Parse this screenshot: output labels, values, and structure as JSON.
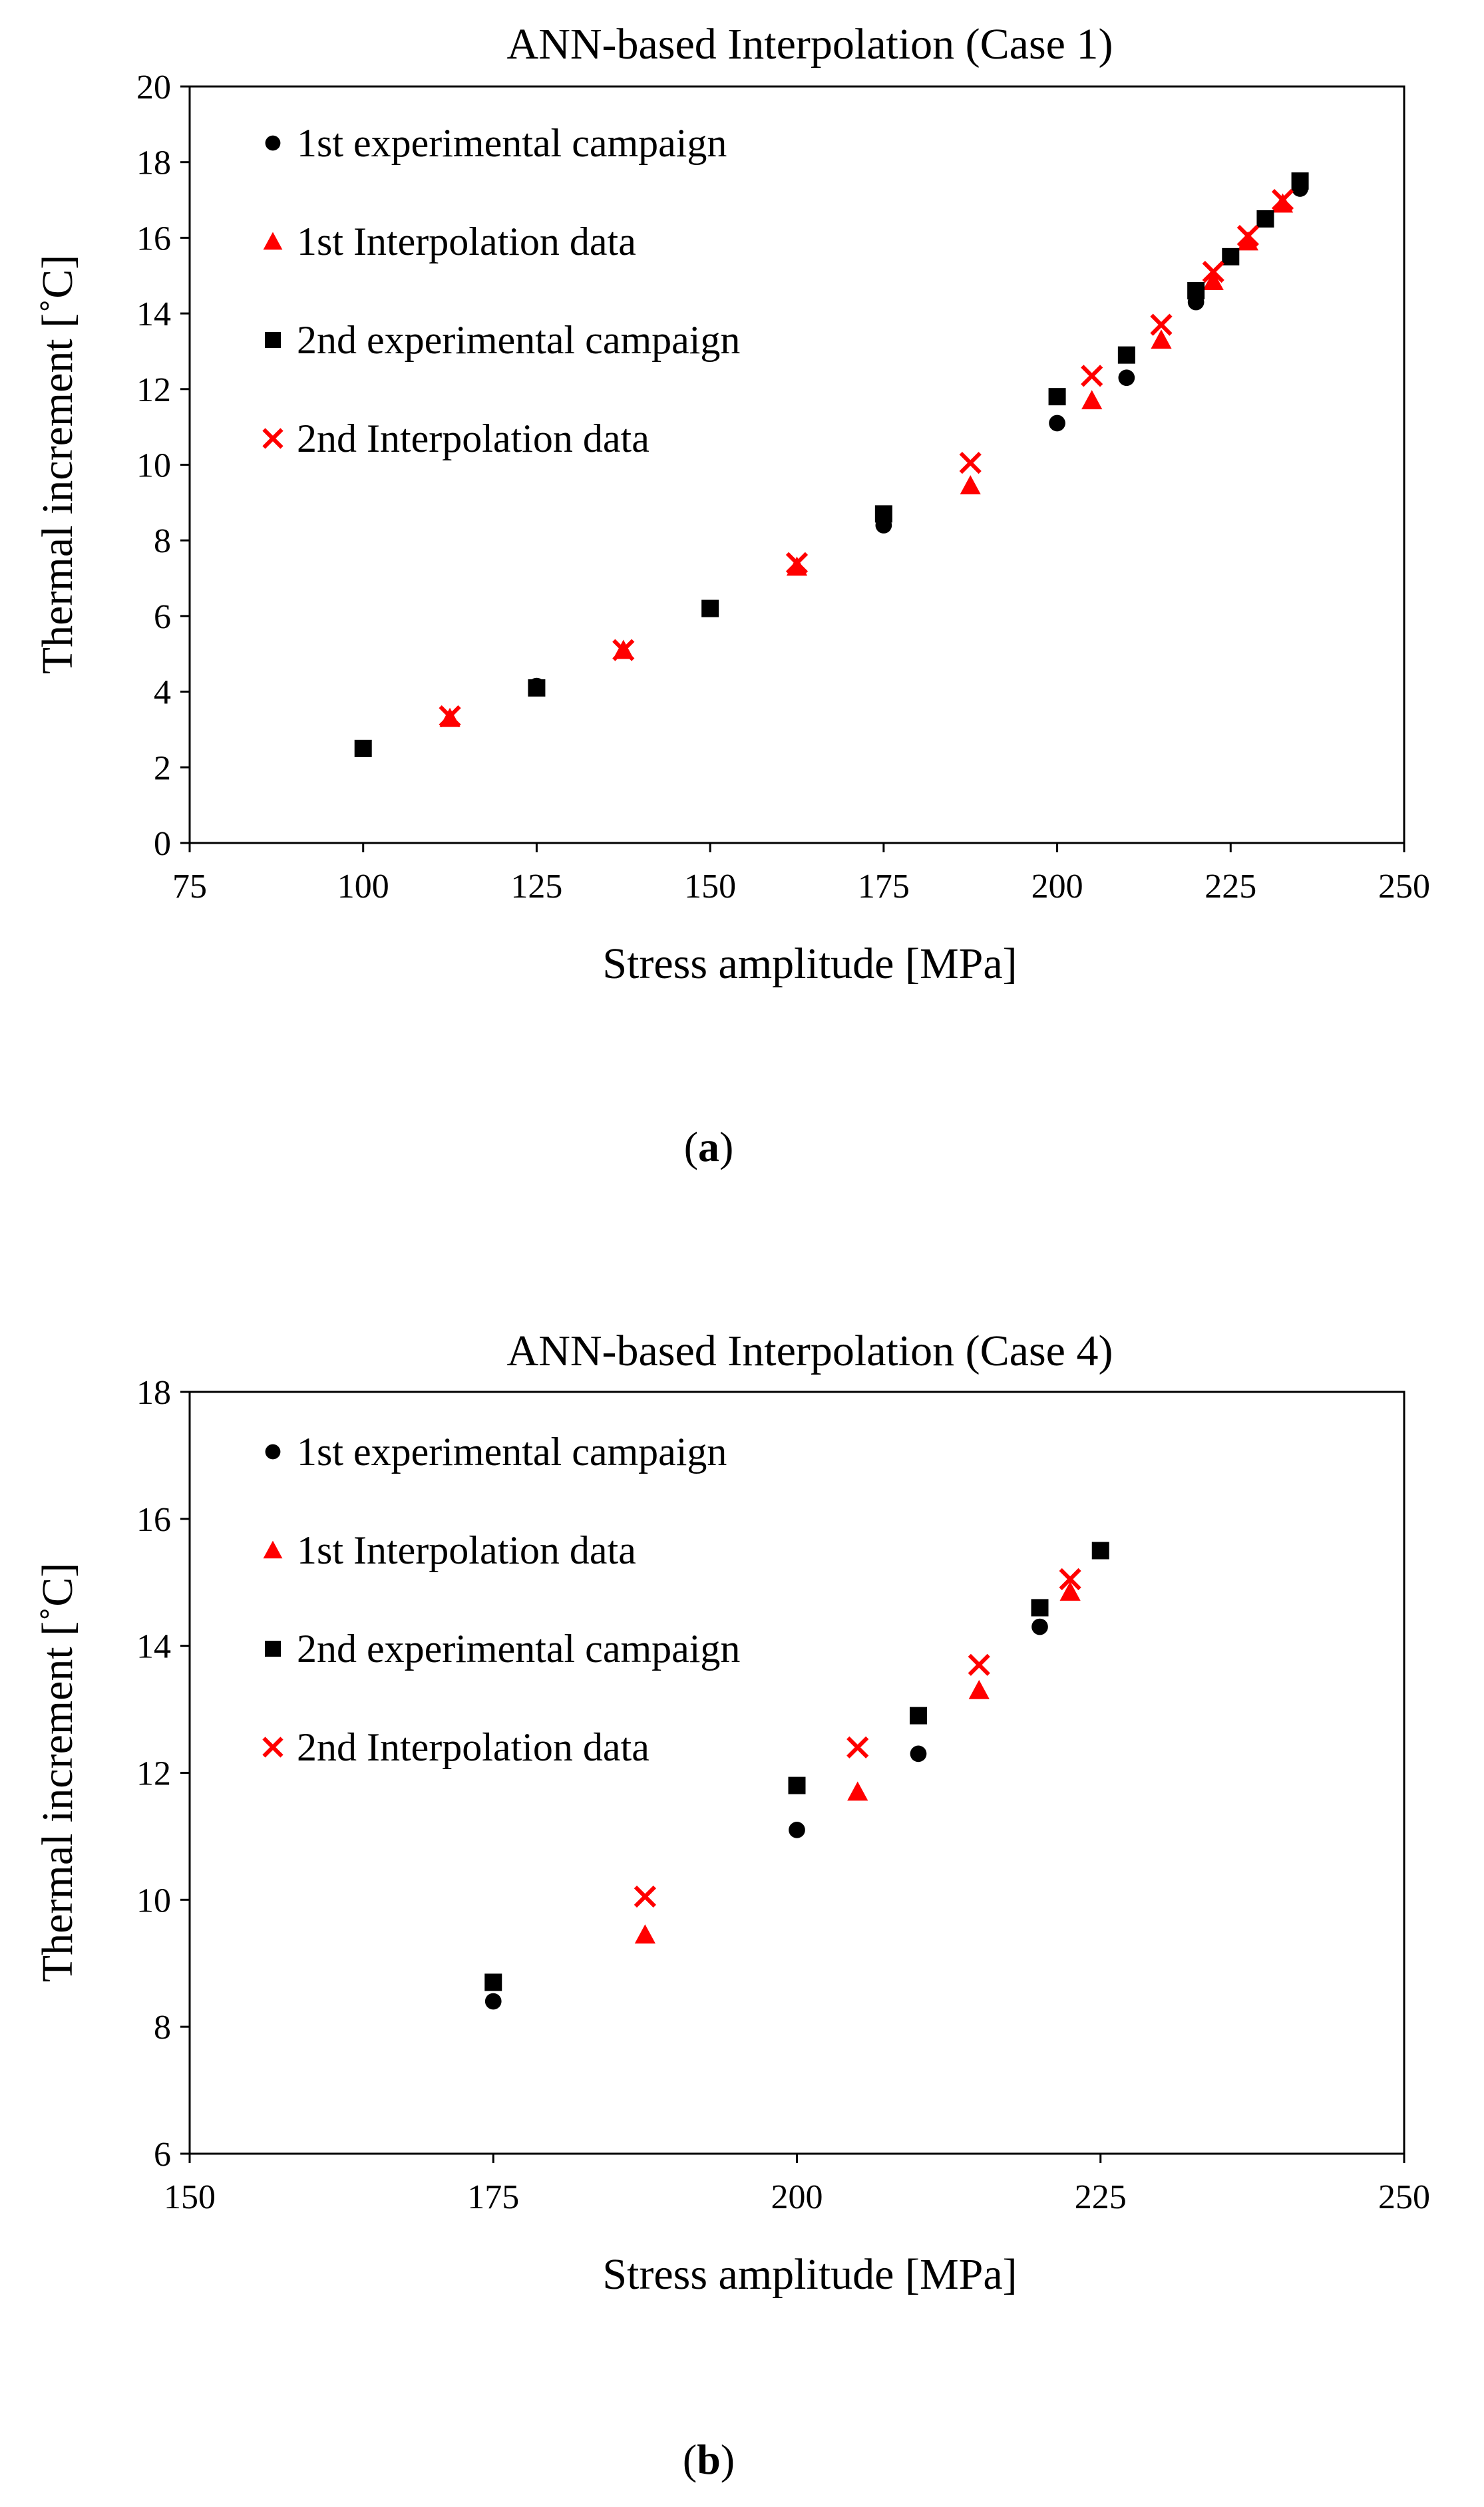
{
  "figure": {
    "captions": [
      "(a)",
      "(b)"
    ],
    "caption_letters": [
      "a",
      "b"
    ]
  },
  "chart_data": [
    {
      "type": "scatter",
      "title": "ANN-based Interpolation (Case 1)",
      "xlabel": "Stress amplitude [MPa]",
      "ylabel": "Thermal increment [˚C]",
      "xlim": [
        75,
        250
      ],
      "ylim": [
        0,
        20
      ],
      "xticks": [
        75,
        100,
        125,
        150,
        175,
        200,
        225,
        250
      ],
      "yticks": [
        0,
        2,
        4,
        6,
        8,
        10,
        12,
        14,
        16,
        18,
        20
      ],
      "grid": false,
      "legend_position": "top-left",
      "series": [
        {
          "name": "1st experimental campaign",
          "marker": "circle",
          "color": "#000000",
          "points": [
            [
              125,
              4.15
            ],
            [
              175,
              8.4
            ],
            [
              200,
              11.1
            ],
            [
              210,
              12.3
            ],
            [
              220,
              14.3
            ],
            [
              235,
              17.3
            ]
          ]
        },
        {
          "name": "1st Interpolation data",
          "marker": "triangle",
          "color": "#ff0000",
          "points": [
            [
              112.5,
              3.3
            ],
            [
              137.5,
              5.1
            ],
            [
              162.5,
              7.3
            ],
            [
              187.5,
              9.45
            ],
            [
              205,
              11.7
            ],
            [
              215,
              13.3
            ],
            [
              222.5,
              14.85
            ],
            [
              227.5,
              15.9
            ],
            [
              232.5,
              16.9
            ]
          ]
        },
        {
          "name": "2nd experimental  campaign",
          "marker": "square",
          "color": "#000000",
          "points": [
            [
              100,
              2.5
            ],
            [
              125,
              4.1
            ],
            [
              150,
              6.2
            ],
            [
              175,
              8.7
            ],
            [
              200,
              11.8
            ],
            [
              210,
              12.9
            ],
            [
              220,
              14.6
            ],
            [
              225,
              15.5
            ],
            [
              230,
              16.5
            ],
            [
              235,
              17.5
            ]
          ]
        },
        {
          "name": "2nd Interpolation data",
          "marker": "cross",
          "color": "#ff0000",
          "points": [
            [
              112.5,
              3.35
            ],
            [
              137.5,
              5.1
            ],
            [
              162.5,
              7.4
            ],
            [
              187.5,
              10.05
            ],
            [
              205,
              12.35
            ],
            [
              215,
              13.7
            ],
            [
              222.5,
              15.1
            ],
            [
              227.5,
              16.05
            ],
            [
              232.5,
              17.0
            ]
          ]
        }
      ]
    },
    {
      "type": "scatter",
      "title": "ANN-based Interpolation (Case 4)",
      "xlabel": "Stress amplitude [MPa]",
      "ylabel": "Thermal increment [˚C]",
      "xlim": [
        150,
        250
      ],
      "ylim": [
        6,
        18
      ],
      "xticks": [
        150,
        175,
        200,
        225,
        250
      ],
      "yticks": [
        6,
        8,
        10,
        12,
        14,
        16,
        18
      ],
      "grid": false,
      "legend_position": "top-left",
      "series": [
        {
          "name": "1st experimental campaign",
          "marker": "circle",
          "color": "#000000",
          "points": [
            [
              175,
              8.4
            ],
            [
              200,
              11.1
            ],
            [
              210,
              12.3
            ],
            [
              220,
              14.3
            ]
          ]
        },
        {
          "name": "1st Interpolation data",
          "marker": "triangle",
          "color": "#ff0000",
          "points": [
            [
              187.5,
              9.45
            ],
            [
              205,
              11.7
            ],
            [
              215,
              13.3
            ],
            [
              222.5,
              14.85
            ]
          ]
        },
        {
          "name": "2nd experimental  campaign",
          "marker": "square",
          "color": "#000000",
          "points": [
            [
              175,
              8.7
            ],
            [
              200,
              11.8
            ],
            [
              210,
              12.9
            ],
            [
              220,
              14.6
            ],
            [
              225,
              15.5
            ]
          ]
        },
        {
          "name": "2nd Interpolation data",
          "marker": "cross",
          "color": "#ff0000",
          "points": [
            [
              187.5,
              10.05
            ],
            [
              205,
              12.4
            ],
            [
              215,
              13.7
            ],
            [
              222.5,
              15.05
            ]
          ]
        }
      ]
    }
  ]
}
